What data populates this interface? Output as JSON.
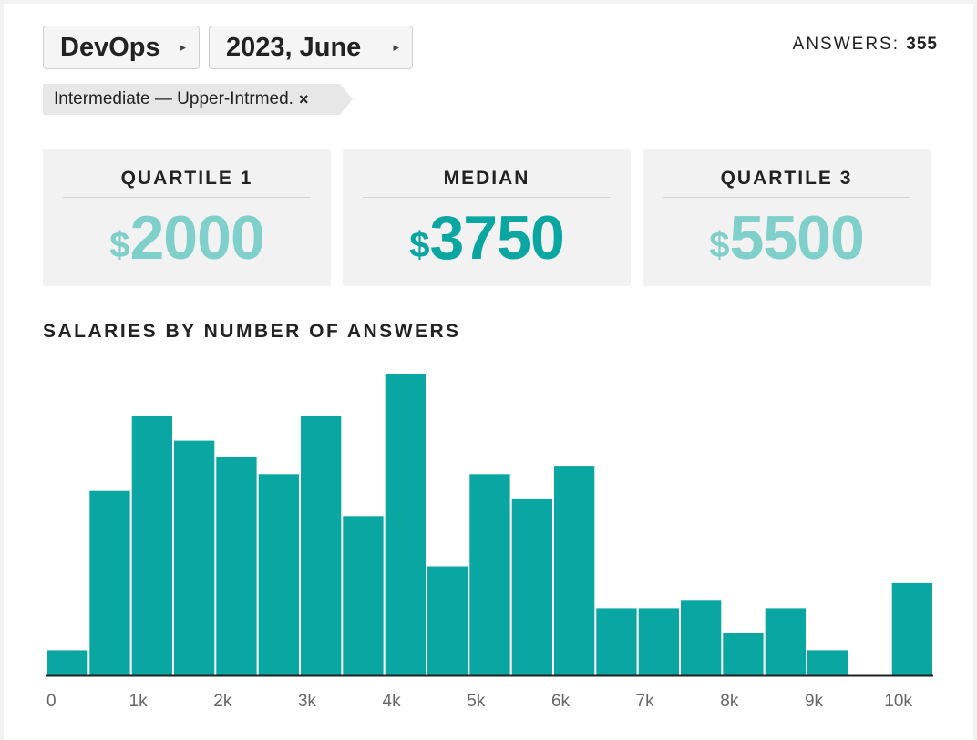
{
  "filters": {
    "category": "DevOps",
    "period": "2023, June",
    "arrow": "▸",
    "level_tag": "Intermediate — Upper-Intrmed.",
    "tag_remove": "×"
  },
  "answers": {
    "label": "ANSWERS:",
    "count": "355"
  },
  "stats": {
    "q1": {
      "label": "QUARTILE 1",
      "currency": "$",
      "value": "2000"
    },
    "median": {
      "label": "MEDIAN",
      "currency": "$",
      "value": "3750"
    },
    "q3": {
      "label": "QUARTILE 3",
      "currency": "$",
      "value": "5500"
    }
  },
  "colors": {
    "bar": "#0aa6a1",
    "light": "#7fcfca",
    "axis": "#222222",
    "tick_text": "#666666"
  },
  "chart_data": {
    "type": "bar",
    "title": "SALARIES BY NUMBER OF ANSWERS",
    "bin_width": 500,
    "bin_starts": [
      0,
      500,
      1000,
      1500,
      2000,
      2500,
      3000,
      3500,
      4000,
      4500,
      5000,
      5500,
      6000,
      6500,
      7000,
      7500,
      8000,
      8500,
      9000,
      9500,
      10000
    ],
    "values": [
      3,
      22,
      31,
      28,
      26,
      24,
      31,
      19,
      36,
      13,
      24,
      21,
      25,
      8,
      8,
      9,
      5,
      8,
      3,
      0,
      11
    ],
    "ylim": [
      0,
      36
    ],
    "x_range": [
      0,
      10500
    ],
    "x_ticks": [
      {
        "value": 0,
        "label": "0"
      },
      {
        "value": 1000,
        "label": "1k"
      },
      {
        "value": 2000,
        "label": "2k"
      },
      {
        "value": 3000,
        "label": "3k"
      },
      {
        "value": 4000,
        "label": "4k"
      },
      {
        "value": 5000,
        "label": "5k"
      },
      {
        "value": 6000,
        "label": "6k"
      },
      {
        "value": 7000,
        "label": "7k"
      },
      {
        "value": 8000,
        "label": "8k"
      },
      {
        "value": 9000,
        "label": "9k"
      },
      {
        "value": 10000,
        "label": "10k"
      }
    ],
    "xlabel": "",
    "ylabel": "",
    "grid": false,
    "legend": "none"
  }
}
